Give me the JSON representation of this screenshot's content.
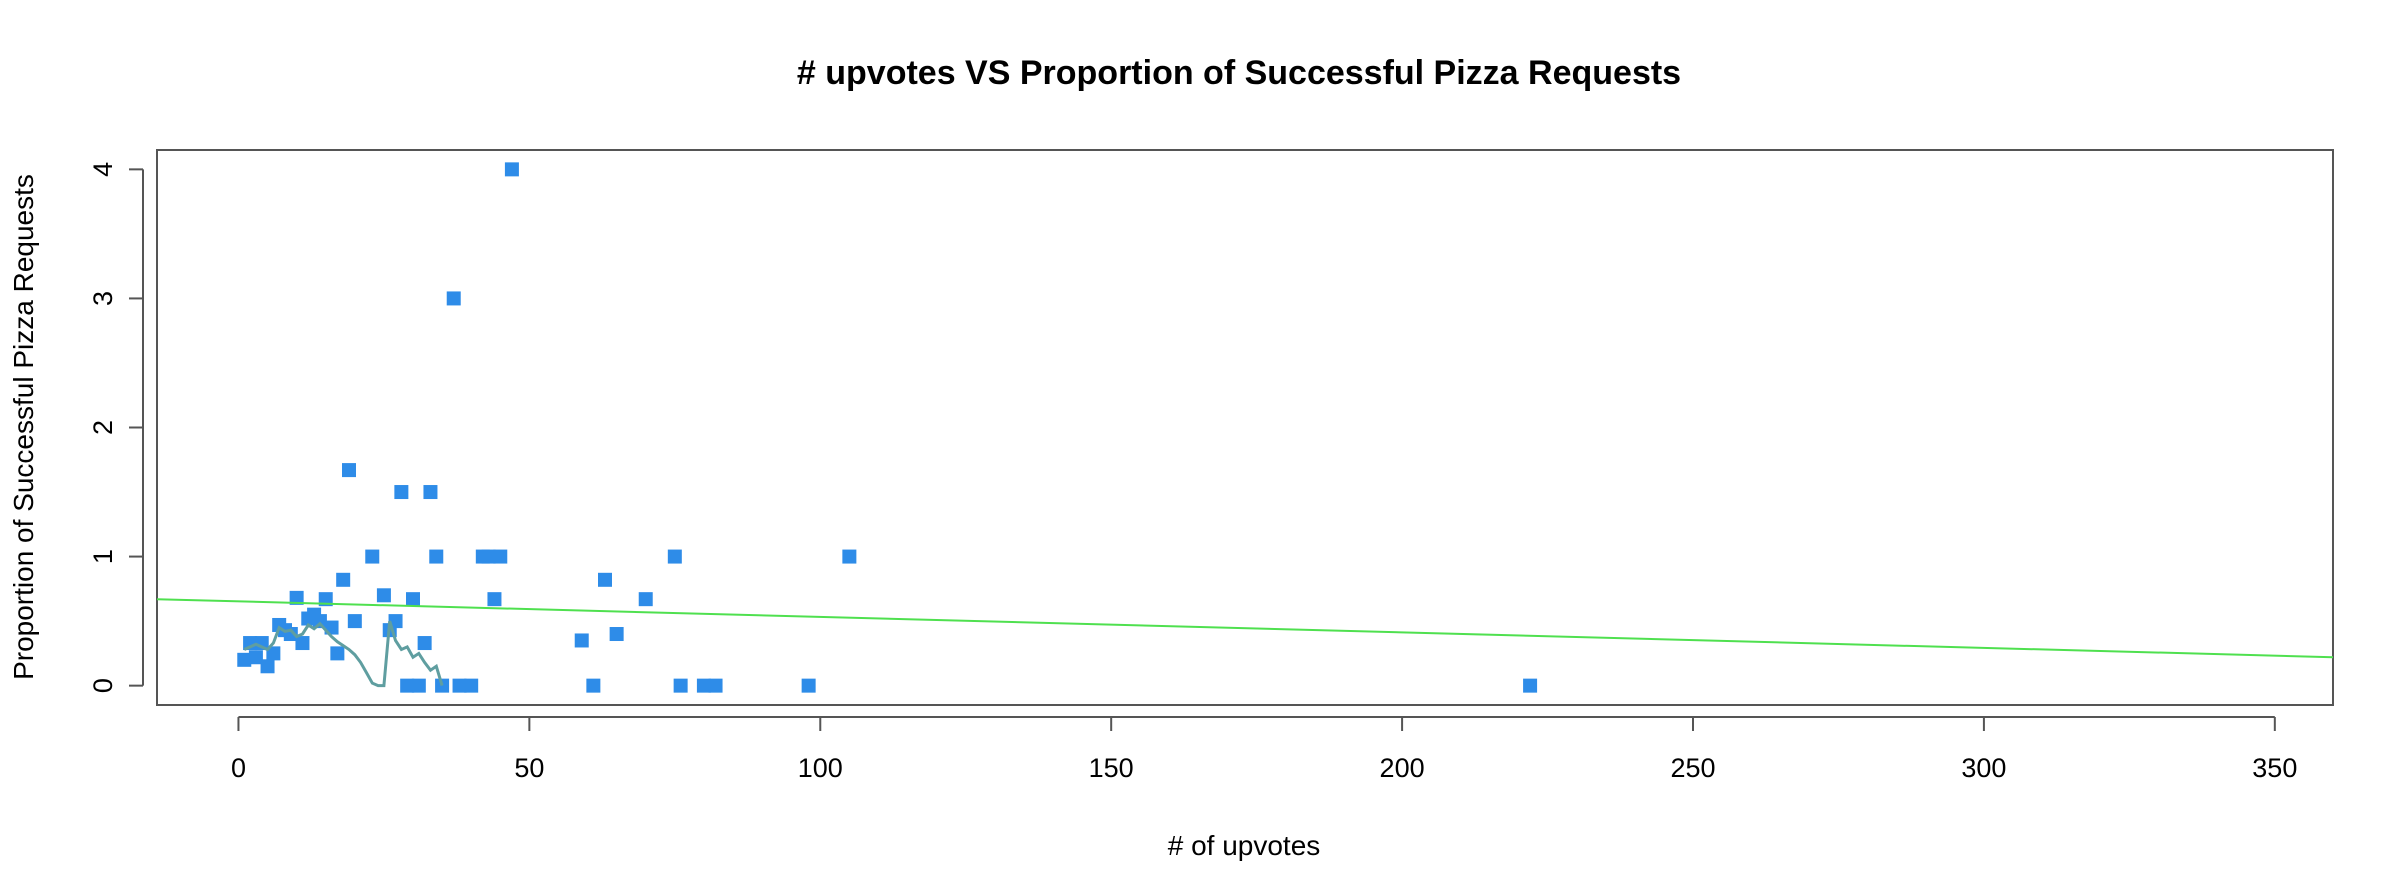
{
  "chart_data": {
    "type": "scatter",
    "title": "# upvotes VS Proportion of Successful Pizza Requests",
    "xlabel": "# of upvotes",
    "ylabel": "Proportion of Successful Pizza Requests",
    "xlim": [
      -14,
      360
    ],
    "ylim": [
      -0.15,
      4.15
    ],
    "xticks": [
      0,
      50,
      100,
      150,
      200,
      250,
      300,
      350
    ],
    "yticks": [
      0,
      1,
      2,
      3,
      4
    ],
    "xtick_labels": [
      "0",
      "50",
      "100",
      "150",
      "200",
      "250",
      "300",
      "350"
    ],
    "ytick_labels": [
      "0",
      "1",
      "2",
      "3",
      "4"
    ],
    "grid": false,
    "series": [
      {
        "kind": "points",
        "color": "#2e8ce8",
        "marker": "square",
        "points": [
          [
            1,
            0.2
          ],
          [
            2,
            0.33
          ],
          [
            3,
            0.22
          ],
          [
            4,
            0.33
          ],
          [
            5,
            0.15
          ],
          [
            6,
            0.25
          ],
          [
            7,
            0.47
          ],
          [
            8,
            0.43
          ],
          [
            9,
            0.4
          ],
          [
            10,
            0.68
          ],
          [
            11,
            0.33
          ],
          [
            12,
            0.52
          ],
          [
            13,
            0.55
          ],
          [
            14,
            0.5
          ],
          [
            15,
            0.67
          ],
          [
            16,
            0.45
          ],
          [
            17,
            0.25
          ],
          [
            18,
            0.82
          ],
          [
            19,
            1.67
          ],
          [
            20,
            0.5
          ],
          [
            23,
            1.0
          ],
          [
            25,
            0.7
          ],
          [
            26,
            0.43
          ],
          [
            27,
            0.5
          ],
          [
            28,
            1.5
          ],
          [
            29,
            0.0
          ],
          [
            30,
            0.67
          ],
          [
            31,
            0.0
          ],
          [
            32,
            0.33
          ],
          [
            33,
            1.5
          ],
          [
            34,
            1.0
          ],
          [
            35,
            0.0
          ],
          [
            37,
            3.0
          ],
          [
            38,
            0.0
          ],
          [
            40,
            0.0
          ],
          [
            42,
            1.0
          ],
          [
            43,
            1.0
          ],
          [
            44,
            0.67
          ],
          [
            45,
            1.0
          ],
          [
            47,
            4.0
          ],
          [
            59,
            0.35
          ],
          [
            61,
            0.0
          ],
          [
            63,
            0.82
          ],
          [
            65,
            0.4
          ],
          [
            70,
            0.67
          ],
          [
            75,
            1.0
          ],
          [
            76,
            0.0
          ],
          [
            80,
            0.0
          ],
          [
            82,
            0.0
          ],
          [
            98,
            0.0
          ],
          [
            105,
            1.0
          ],
          [
            222,
            0.0
          ]
        ]
      },
      {
        "kind": "line",
        "color": "#5f9ea0",
        "points": [
          [
            1,
            0.28
          ],
          [
            2,
            0.3
          ],
          [
            3,
            0.32
          ],
          [
            4,
            0.3
          ],
          [
            5,
            0.28
          ],
          [
            6,
            0.33
          ],
          [
            7,
            0.45
          ],
          [
            8,
            0.42
          ],
          [
            9,
            0.43
          ],
          [
            10,
            0.38
          ],
          [
            11,
            0.4
          ],
          [
            12,
            0.47
          ],
          [
            13,
            0.44
          ],
          [
            14,
            0.48
          ],
          [
            15,
            0.43
          ],
          [
            16,
            0.38
          ],
          [
            17,
            0.34
          ],
          [
            18,
            0.31
          ],
          [
            19,
            0.28
          ],
          [
            20,
            0.24
          ],
          [
            21,
            0.18
          ],
          [
            22,
            0.1
          ],
          [
            23,
            0.02
          ],
          [
            24,
            0.0
          ],
          [
            25,
            0.0
          ],
          [
            26,
            0.5
          ],
          [
            27,
            0.35
          ],
          [
            28,
            0.28
          ],
          [
            29,
            0.3
          ],
          [
            30,
            0.22
          ],
          [
            31,
            0.25
          ],
          [
            32,
            0.18
          ],
          [
            33,
            0.12
          ],
          [
            34,
            0.15
          ],
          [
            35,
            0.0
          ]
        ]
      },
      {
        "kind": "line",
        "color": "#4fe04f",
        "points": [
          [
            -14,
            0.67
          ],
          [
            360,
            0.22
          ]
        ]
      }
    ]
  }
}
